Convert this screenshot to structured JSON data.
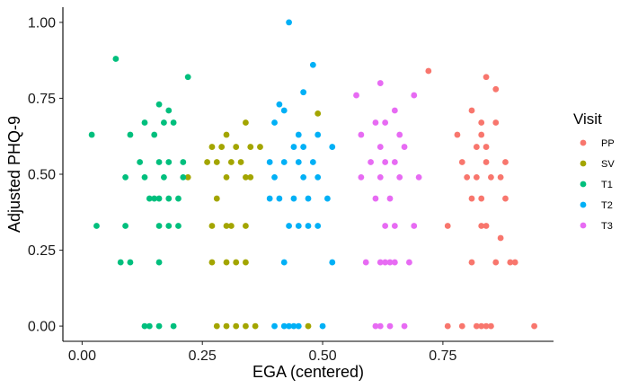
{
  "chart_data": {
    "type": "scatter",
    "title": "",
    "xlabel": "EGA (centered)",
    "ylabel": "Adjusted PHQ-9",
    "xlim": [
      -0.04,
      0.98
    ],
    "ylim": [
      -0.05,
      1.05
    ],
    "x_ticks": [
      0.0,
      0.25,
      0.5,
      0.75
    ],
    "x_tick_labels": [
      "0.00",
      "0.25",
      "0.50",
      "0.75"
    ],
    "y_ticks": [
      0.0,
      0.25,
      0.5,
      0.75,
      1.0
    ],
    "y_tick_labels": [
      "0.00",
      "0.25",
      "0.50",
      "0.75",
      "1.00"
    ],
    "grid": false,
    "legend": {
      "title": "Visit",
      "position": "right"
    },
    "series": [
      {
        "name": "PP",
        "color": "#F8766D",
        "points": [
          [
            0.72,
            0.84
          ],
          [
            0.84,
            0.82
          ],
          [
            0.86,
            0.78
          ],
          [
            0.81,
            0.71
          ],
          [
            0.83,
            0.67
          ],
          [
            0.86,
            0.67
          ],
          [
            0.78,
            0.63
          ],
          [
            0.83,
            0.63
          ],
          [
            0.82,
            0.59
          ],
          [
            0.84,
            0.59
          ],
          [
            0.79,
            0.54
          ],
          [
            0.84,
            0.54
          ],
          [
            0.88,
            0.54
          ],
          [
            0.8,
            0.49
          ],
          [
            0.82,
            0.49
          ],
          [
            0.85,
            0.49
          ],
          [
            0.87,
            0.49
          ],
          [
            0.81,
            0.42
          ],
          [
            0.83,
            0.42
          ],
          [
            0.88,
            0.42
          ],
          [
            0.76,
            0.33
          ],
          [
            0.83,
            0.33
          ],
          [
            0.84,
            0.33
          ],
          [
            0.87,
            0.29
          ],
          [
            0.81,
            0.21
          ],
          [
            0.86,
            0.21
          ],
          [
            0.89,
            0.21
          ],
          [
            0.9,
            0.21
          ],
          [
            0.76,
            0.0
          ],
          [
            0.79,
            0.0
          ],
          [
            0.82,
            0.0
          ],
          [
            0.83,
            0.0
          ],
          [
            0.84,
            0.0
          ],
          [
            0.85,
            0.0
          ],
          [
            0.94,
            0.0
          ]
        ]
      },
      {
        "name": "SV",
        "color": "#A3A500",
        "points": [
          [
            0.22,
            0.49
          ],
          [
            0.49,
            0.7
          ],
          [
            0.34,
            0.67
          ],
          [
            0.3,
            0.63
          ],
          [
            0.27,
            0.59
          ],
          [
            0.29,
            0.59
          ],
          [
            0.32,
            0.59
          ],
          [
            0.35,
            0.59
          ],
          [
            0.37,
            0.59
          ],
          [
            0.26,
            0.54
          ],
          [
            0.28,
            0.54
          ],
          [
            0.31,
            0.54
          ],
          [
            0.33,
            0.54
          ],
          [
            0.3,
            0.49
          ],
          [
            0.34,
            0.49
          ],
          [
            0.35,
            0.49
          ],
          [
            0.28,
            0.42
          ],
          [
            0.27,
            0.33
          ],
          [
            0.3,
            0.33
          ],
          [
            0.31,
            0.33
          ],
          [
            0.34,
            0.33
          ],
          [
            0.27,
            0.21
          ],
          [
            0.3,
            0.21
          ],
          [
            0.32,
            0.21
          ],
          [
            0.34,
            0.21
          ],
          [
            0.28,
            0.0
          ],
          [
            0.3,
            0.0
          ],
          [
            0.32,
            0.0
          ],
          [
            0.34,
            0.0
          ],
          [
            0.36,
            0.0
          ],
          [
            0.47,
            0.0
          ]
        ]
      },
      {
        "name": "T1",
        "color": "#00BF7D",
        "points": [
          [
            0.07,
            0.88
          ],
          [
            0.22,
            0.82
          ],
          [
            0.16,
            0.73
          ],
          [
            0.18,
            0.71
          ],
          [
            0.13,
            0.67
          ],
          [
            0.17,
            0.67
          ],
          [
            0.19,
            0.67
          ],
          [
            0.02,
            0.63
          ],
          [
            0.1,
            0.63
          ],
          [
            0.15,
            0.63
          ],
          [
            0.12,
            0.54
          ],
          [
            0.16,
            0.54
          ],
          [
            0.18,
            0.54
          ],
          [
            0.21,
            0.54
          ],
          [
            0.09,
            0.49
          ],
          [
            0.13,
            0.49
          ],
          [
            0.17,
            0.49
          ],
          [
            0.21,
            0.49
          ],
          [
            0.14,
            0.42
          ],
          [
            0.15,
            0.42
          ],
          [
            0.16,
            0.42
          ],
          [
            0.18,
            0.42
          ],
          [
            0.2,
            0.42
          ],
          [
            0.03,
            0.33
          ],
          [
            0.09,
            0.33
          ],
          [
            0.16,
            0.33
          ],
          [
            0.18,
            0.33
          ],
          [
            0.2,
            0.33
          ],
          [
            0.08,
            0.21
          ],
          [
            0.1,
            0.21
          ],
          [
            0.16,
            0.21
          ],
          [
            0.13,
            0.0
          ],
          [
            0.14,
            0.0
          ],
          [
            0.16,
            0.0
          ],
          [
            0.19,
            0.0
          ]
        ]
      },
      {
        "name": "T2",
        "color": "#00B0F6",
        "points": [
          [
            0.43,
            1.0
          ],
          [
            0.48,
            0.86
          ],
          [
            0.46,
            0.77
          ],
          [
            0.41,
            0.73
          ],
          [
            0.42,
            0.71
          ],
          [
            0.4,
            0.67
          ],
          [
            0.45,
            0.63
          ],
          [
            0.49,
            0.63
          ],
          [
            0.44,
            0.59
          ],
          [
            0.46,
            0.59
          ],
          [
            0.52,
            0.59
          ],
          [
            0.39,
            0.54
          ],
          [
            0.42,
            0.54
          ],
          [
            0.45,
            0.54
          ],
          [
            0.48,
            0.54
          ],
          [
            0.4,
            0.49
          ],
          [
            0.46,
            0.49
          ],
          [
            0.49,
            0.49
          ],
          [
            0.39,
            0.42
          ],
          [
            0.41,
            0.42
          ],
          [
            0.44,
            0.42
          ],
          [
            0.47,
            0.42
          ],
          [
            0.51,
            0.42
          ],
          [
            0.43,
            0.33
          ],
          [
            0.45,
            0.33
          ],
          [
            0.47,
            0.33
          ],
          [
            0.49,
            0.33
          ],
          [
            0.42,
            0.21
          ],
          [
            0.52,
            0.21
          ],
          [
            0.4,
            0.0
          ],
          [
            0.42,
            0.0
          ],
          [
            0.43,
            0.0
          ],
          [
            0.44,
            0.0
          ],
          [
            0.45,
            0.0
          ],
          [
            0.5,
            0.0
          ]
        ]
      },
      {
        "name": "T3",
        "color": "#E76BF3",
        "points": [
          [
            0.57,
            0.76
          ],
          [
            0.62,
            0.8
          ],
          [
            0.69,
            0.76
          ],
          [
            0.65,
            0.71
          ],
          [
            0.61,
            0.67
          ],
          [
            0.63,
            0.67
          ],
          [
            0.58,
            0.63
          ],
          [
            0.66,
            0.63
          ],
          [
            0.62,
            0.59
          ],
          [
            0.67,
            0.59
          ],
          [
            0.6,
            0.54
          ],
          [
            0.63,
            0.54
          ],
          [
            0.65,
            0.54
          ],
          [
            0.58,
            0.49
          ],
          [
            0.62,
            0.49
          ],
          [
            0.66,
            0.49
          ],
          [
            0.7,
            0.49
          ],
          [
            0.61,
            0.42
          ],
          [
            0.64,
            0.42
          ],
          [
            0.63,
            0.33
          ],
          [
            0.65,
            0.33
          ],
          [
            0.69,
            0.33
          ],
          [
            0.59,
            0.21
          ],
          [
            0.62,
            0.21
          ],
          [
            0.63,
            0.21
          ],
          [
            0.64,
            0.21
          ],
          [
            0.65,
            0.21
          ],
          [
            0.68,
            0.21
          ],
          [
            0.61,
            0.0
          ],
          [
            0.62,
            0.0
          ],
          [
            0.64,
            0.0
          ],
          [
            0.67,
            0.0
          ]
        ]
      }
    ]
  }
}
